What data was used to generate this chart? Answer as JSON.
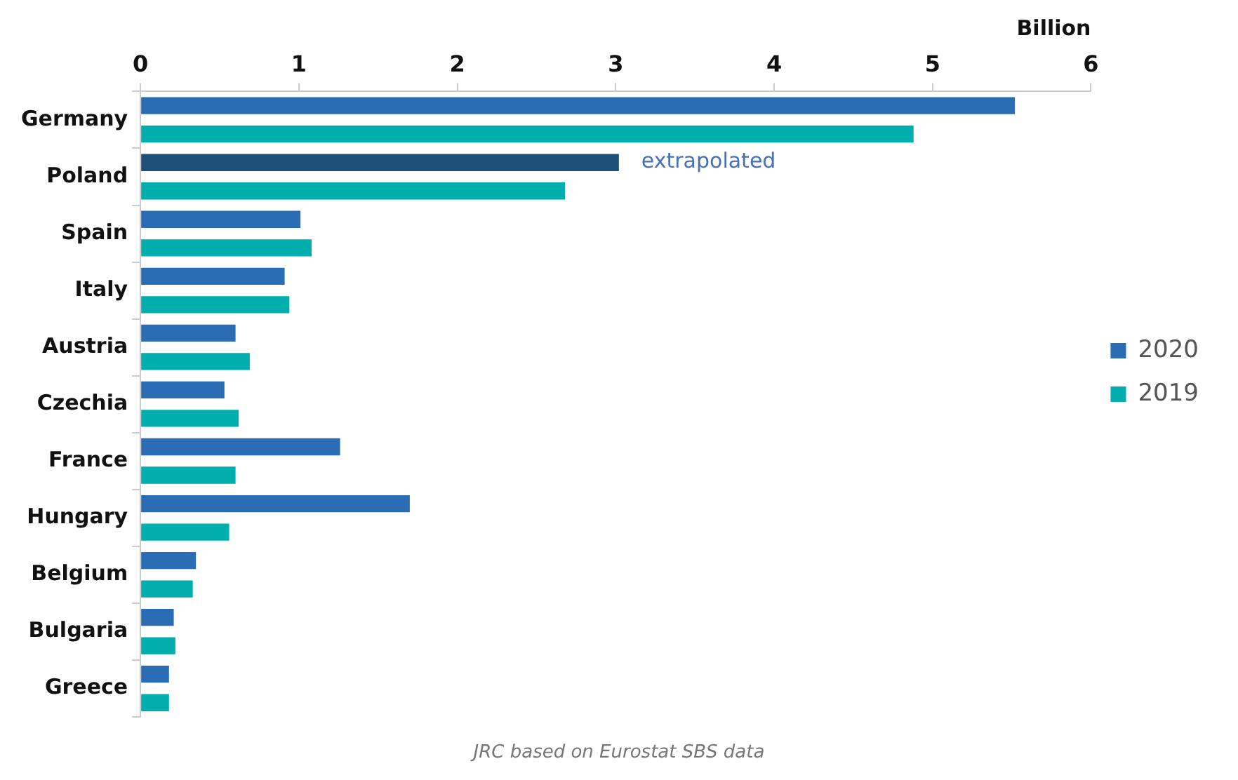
{
  "chart_data": {
    "type": "bar",
    "orientation": "horizontal",
    "xlabel": "Billion",
    "categories": [
      "Germany",
      "Poland",
      "Spain",
      "Italy",
      "Austria",
      "Czechia",
      "France",
      "Hungary",
      "Belgium",
      "Bulgaria",
      "Greece"
    ],
    "series": [
      {
        "name": "2020",
        "color": "#2a6db5",
        "colors": [
          "#2a6db5",
          "#1f4e79",
          "#2a6db5",
          "#2a6db5",
          "#2a6db5",
          "#2a6db5",
          "#2a6db5",
          "#2a6db5",
          "#2a6db5",
          "#2a6db5",
          "#2a6db5"
        ],
        "values": [
          5.52,
          3.02,
          1.01,
          0.91,
          0.6,
          0.53,
          1.26,
          1.7,
          0.35,
          0.21,
          0.18
        ]
      },
      {
        "name": "2019",
        "color": "#00aead",
        "values": [
          4.88,
          2.68,
          1.08,
          0.94,
          0.69,
          0.62,
          0.6,
          0.56,
          0.33,
          0.22,
          0.18
        ]
      }
    ],
    "xlim": [
      0,
      6
    ],
    "xticks": [
      0,
      1,
      2,
      3,
      4,
      5,
      6
    ],
    "legend": "right",
    "grid": false,
    "annotations": [
      {
        "text": "extrapolated",
        "x": 3.02,
        "y": "Poland"
      },
      "JRC based on Eurostat SBS data"
    ]
  }
}
